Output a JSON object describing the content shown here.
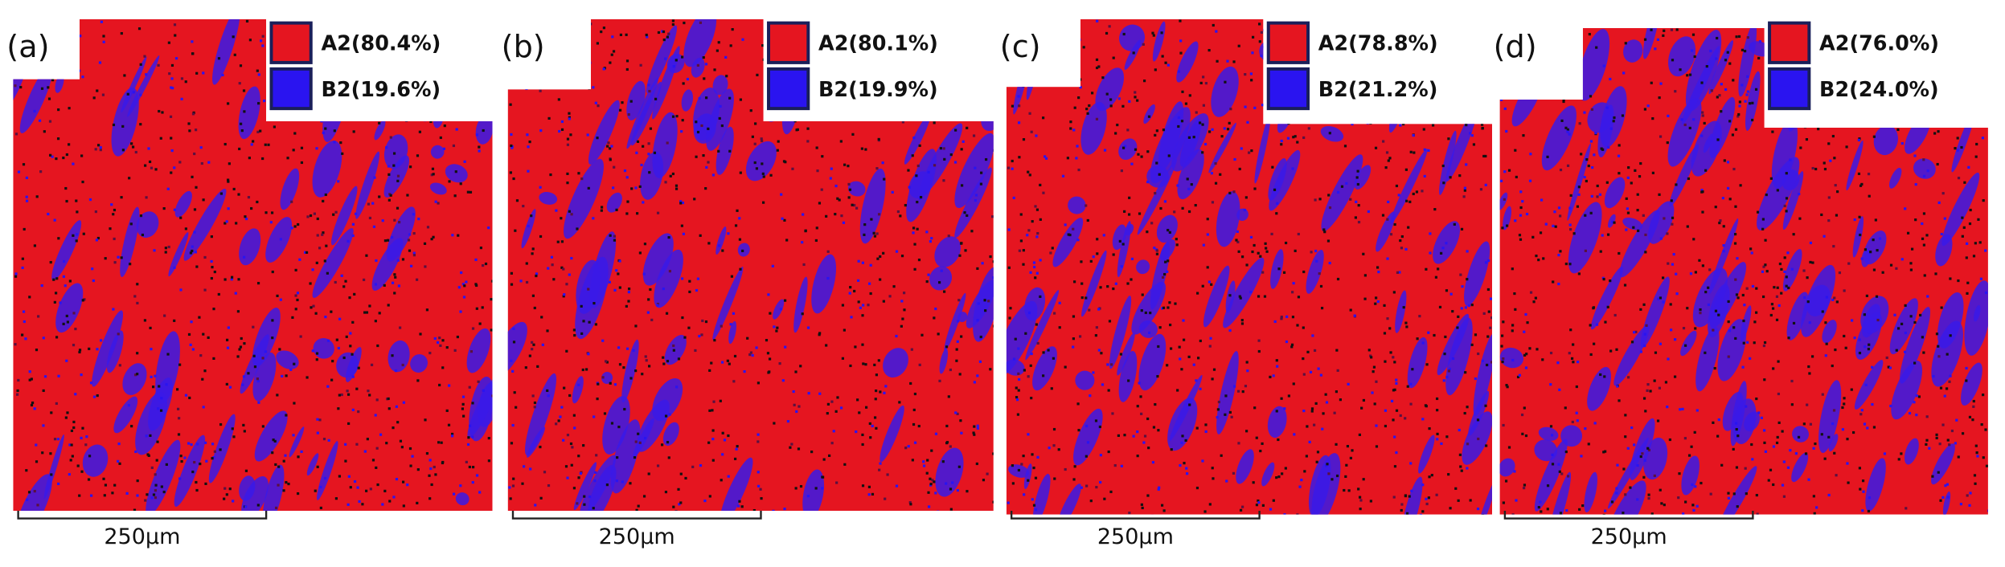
{
  "panels": [
    {
      "label": "(a)",
      "legend": [
        "A2(80.4%)",
        "B2(19.6%)"
      ],
      "scale_bar": "250μm"
    },
    {
      "label": "(b)",
      "legend": [
        "A2(80.1%)",
        "B2(19.9%)"
      ],
      "scale_bar": "250μm"
    },
    {
      "label": "(c)",
      "legend": [
        "A2(78.8%)",
        "B2(21.2%)"
      ],
      "scale_bar": "250μm"
    },
    {
      "label": "(d)",
      "legend": [
        "A2(76.0%)",
        "B2(24.0%)"
      ],
      "scale_bar": "250μm"
    }
  ]
}
